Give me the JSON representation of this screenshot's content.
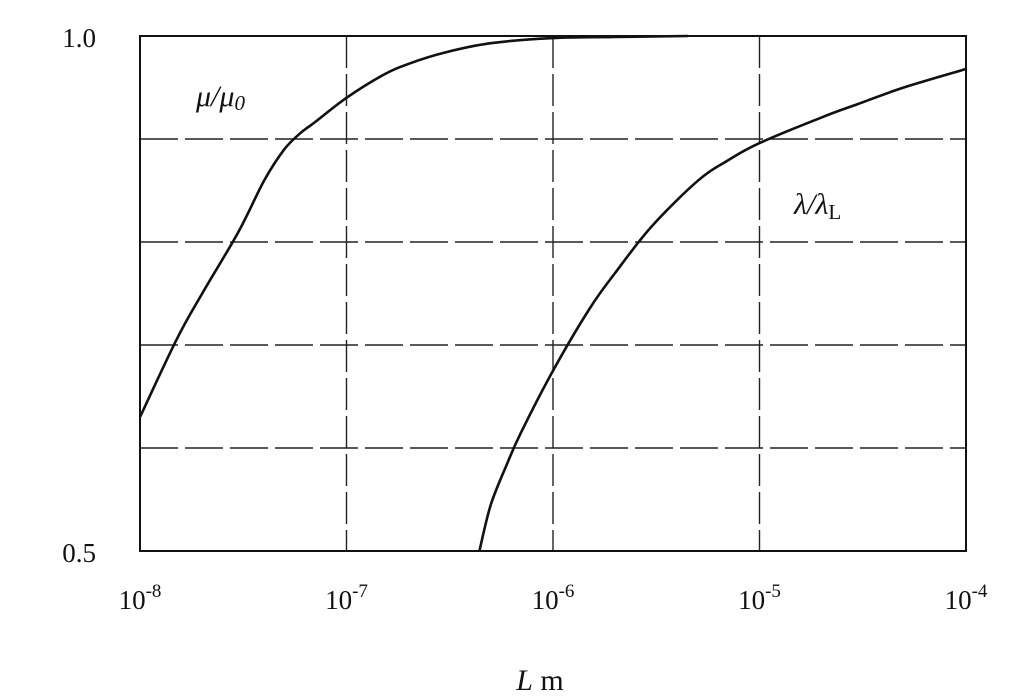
{
  "chart_data": {
    "type": "line",
    "xscale": "log",
    "xlim": [
      1e-08,
      0.0001
    ],
    "ylim": [
      0.5,
      1.0
    ],
    "grid": true,
    "xlabel_var": "L",
    "xlabel_unit": " m",
    "x_ticks": [
      {
        "value": 1e-08,
        "base": "10",
        "exp": "-8"
      },
      {
        "value": 1e-07,
        "base": "10",
        "exp": "-7"
      },
      {
        "value": 1e-06,
        "base": "10",
        "exp": "-6"
      },
      {
        "value": 1e-05,
        "base": "10",
        "exp": "-5"
      },
      {
        "value": 0.0001,
        "base": "10",
        "exp": "-4"
      }
    ],
    "y_ticks": [
      {
        "value": 0.5,
        "label": "0.5"
      },
      {
        "value": 1.0,
        "label": "1.0"
      }
    ],
    "y_gridlines": [
      0.6,
      0.7,
      0.8,
      0.9,
      1.0
    ],
    "series": [
      {
        "id": "mu",
        "name_main": "μ/μ",
        "name_sub": "0",
        "x": [
          1e-08,
          1.5e-08,
          2e-08,
          3e-08,
          4e-08,
          5e-08,
          6e-08,
          7e-08,
          1e-07,
          1.5e-07,
          2e-07,
          3e-07,
          5e-07,
          1e-06,
          2e-06,
          4.5e-06
        ],
        "y": [
          0.63,
          0.705,
          0.75,
          0.81,
          0.86,
          0.89,
          0.906,
          0.916,
          0.94,
          0.962,
          0.973,
          0.984,
          0.993,
          0.998,
          0.999,
          1.0
        ]
      },
      {
        "id": "lambda",
        "name_main": "λ/λ",
        "name_sub": "L",
        "x": [
          4.4e-07,
          5e-07,
          6e-07,
          7e-07,
          1e-06,
          1.5e-06,
          2e-06,
          3e-06,
          5e-06,
          7e-06,
          1e-05,
          2e-05,
          3e-05,
          5e-05,
          0.0001
        ],
        "y": [
          0.5,
          0.545,
          0.585,
          0.615,
          0.675,
          0.735,
          0.77,
          0.815,
          0.859,
          0.879,
          0.896,
          0.921,
          0.934,
          0.95,
          0.968
        ]
      }
    ]
  }
}
